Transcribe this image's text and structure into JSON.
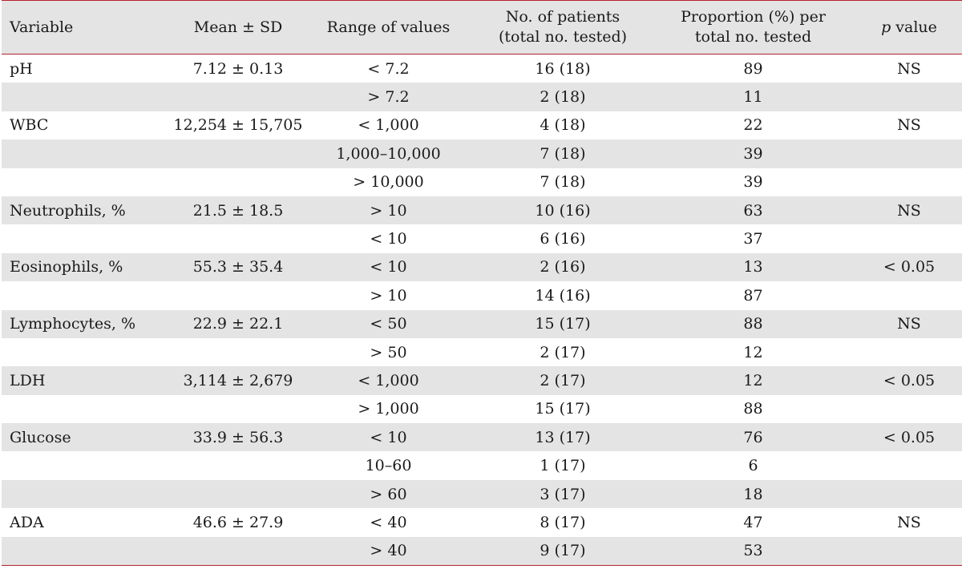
{
  "table": {
    "headers": {
      "variable": "Variable",
      "mean_sd": "Mean ± SD",
      "range": "Range of values",
      "patients_line1": "No. of patients",
      "patients_line2": "(total no. tested)",
      "proportion_line1": "Proportion (%) per",
      "proportion_line2": "total no. tested",
      "p_italic": "p",
      "p_rest": " value"
    },
    "rows": [
      {
        "variable": "pH",
        "mean": "7.12 ± 0.13",
        "range": "< 7.2",
        "patients": "16 (18)",
        "proportion": "89",
        "p": "NS"
      },
      {
        "variable": "",
        "mean": "",
        "range": "> 7.2",
        "patients": "2 (18)",
        "proportion": "11",
        "p": ""
      },
      {
        "variable": "WBC",
        "mean": "12,254 ± 15,705",
        "range": "< 1,000",
        "patients": "4 (18)",
        "proportion": "22",
        "p": "NS"
      },
      {
        "variable": "",
        "mean": "",
        "range": "1,000–10,000",
        "patients": "7 (18)",
        "proportion": "39",
        "p": ""
      },
      {
        "variable": "",
        "mean": "",
        "range": "> 10,000",
        "patients": "7 (18)",
        "proportion": "39",
        "p": ""
      },
      {
        "variable": "Neutrophils, %",
        "mean": "21.5 ± 18.5",
        "range": "> 10",
        "patients": "10 (16)",
        "proportion": "63",
        "p": "NS"
      },
      {
        "variable": "",
        "mean": "",
        "range": "< 10",
        "patients": "6 (16)",
        "proportion": "37",
        "p": ""
      },
      {
        "variable": "Eosinophils, %",
        "mean": "55.3 ± 35.4",
        "range": "< 10",
        "patients": "2 (16)",
        "proportion": "13",
        "p": "< 0.05"
      },
      {
        "variable": "",
        "mean": "",
        "range": "> 10",
        "patients": "14 (16)",
        "proportion": "87",
        "p": ""
      },
      {
        "variable": "Lymphocytes, %",
        "mean": "22.9 ± 22.1",
        "range": "< 50",
        "patients": "15 (17)",
        "proportion": "88",
        "p": "NS"
      },
      {
        "variable": "",
        "mean": "",
        "range": "> 50",
        "patients": "2 (17)",
        "proportion": "12",
        "p": ""
      },
      {
        "variable": "LDH",
        "mean": "3,114 ± 2,679",
        "range": "< 1,000",
        "patients": "2 (17)",
        "proportion": "12",
        "p": "< 0.05"
      },
      {
        "variable": "",
        "mean": "",
        "range": "> 1,000",
        "patients": "15 (17)",
        "proportion": "88",
        "p": ""
      },
      {
        "variable": "Glucose",
        "mean": "33.9 ± 56.3",
        "range": "< 10",
        "patients": "13 (17)",
        "proportion": "76",
        "p": "< 0.05"
      },
      {
        "variable": "",
        "mean": "",
        "range": "10–60",
        "patients": "1 (17)",
        "proportion": "6",
        "p": ""
      },
      {
        "variable": "",
        "mean": "",
        "range": "> 60",
        "patients": "3 (17)",
        "proportion": "18",
        "p": ""
      },
      {
        "variable": "ADA",
        "mean": "46.6 ± 27.9",
        "range": "< 40",
        "patients": "8 (17)",
        "proportion": "47",
        "p": "NS"
      },
      {
        "variable": "",
        "mean": "",
        "range": "> 40",
        "patients": "9 (17)",
        "proportion": "53",
        "p": ""
      }
    ]
  },
  "colors": {
    "rule": "#b5202e",
    "shade": "#e4e4e4",
    "text": "#1a1a1a"
  }
}
